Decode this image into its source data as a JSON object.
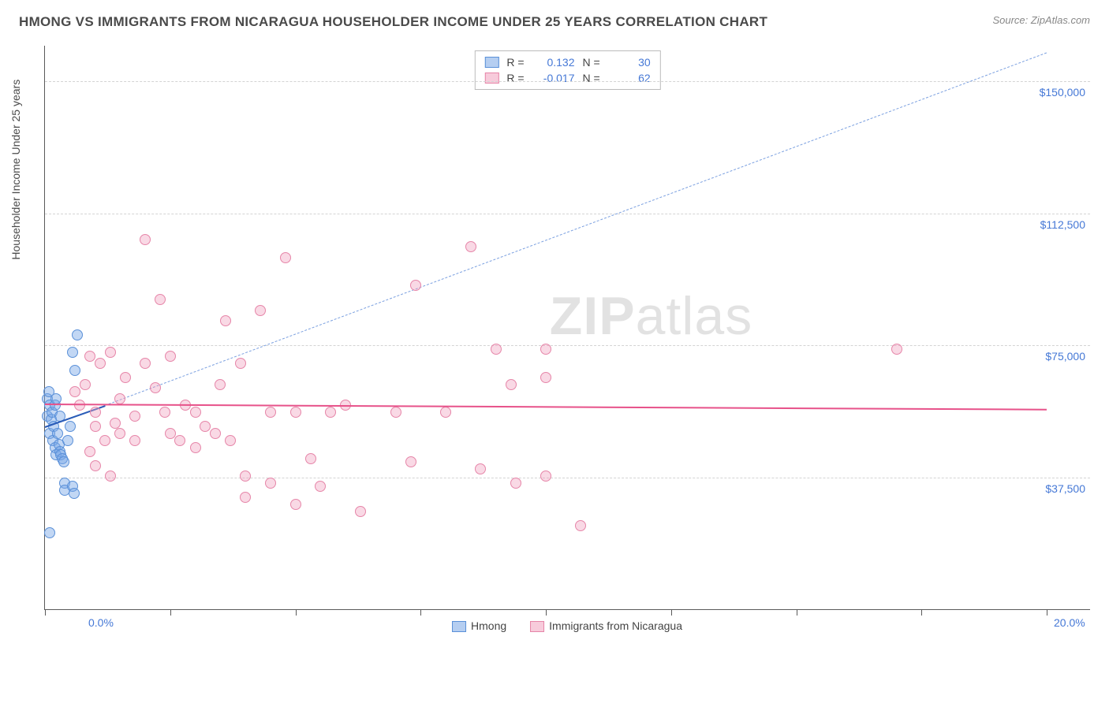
{
  "title": "HMONG VS IMMIGRANTS FROM NICARAGUA HOUSEHOLDER INCOME UNDER 25 YEARS CORRELATION CHART",
  "source": "Source: ZipAtlas.com",
  "watermark_a": "ZIP",
  "watermark_b": "atlas",
  "chart": {
    "type": "scatter",
    "y_axis_title": "Householder Income Under 25 years",
    "xlim": [
      0,
      20
    ],
    "ylim": [
      0,
      160000
    ],
    "x_ticks": [
      0,
      2.5,
      5.0,
      7.5,
      10.0,
      12.5,
      15.0,
      17.5,
      20.0
    ],
    "x_tick_labels": {
      "0": "0.0%",
      "20": "20.0%"
    },
    "y_gridlines": [
      37500,
      75000,
      112500,
      150000
    ],
    "y_tick_labels": {
      "37500": "$37,500",
      "75000": "$75,000",
      "112500": "$112,500",
      "150000": "$150,000"
    },
    "background_color": "#ffffff",
    "grid_color": "#d4d4d4",
    "series": [
      {
        "name": "Hmong",
        "color_fill": "rgba(120,166,230,0.45)",
        "color_stroke": "#5a90d8",
        "legend_r_label": "R =",
        "r": "0.132",
        "legend_n_label": "N =",
        "n": "30",
        "trend": {
          "x1": 0,
          "y1": 52000,
          "x2": 1.2,
          "y2": 58000,
          "dash_to_x": 20,
          "dash_to_y": 158000
        },
        "points": [
          [
            0.05,
            55000
          ],
          [
            0.05,
            60000
          ],
          [
            0.08,
            62000
          ],
          [
            0.1,
            50000
          ],
          [
            0.1,
            58000
          ],
          [
            0.12,
            54000
          ],
          [
            0.14,
            56000
          ],
          [
            0.15,
            48000
          ],
          [
            0.18,
            52000
          ],
          [
            0.2,
            46000
          ],
          [
            0.2,
            58000
          ],
          [
            0.22,
            44000
          ],
          [
            0.22,
            60000
          ],
          [
            0.25,
            50000
          ],
          [
            0.28,
            47000
          ],
          [
            0.3,
            55000
          ],
          [
            0.3,
            45000
          ],
          [
            0.32,
            44000
          ],
          [
            0.35,
            43000
          ],
          [
            0.38,
            42000
          ],
          [
            0.4,
            36000
          ],
          [
            0.4,
            34000
          ],
          [
            0.45,
            48000
          ],
          [
            0.5,
            52000
          ],
          [
            0.55,
            73000
          ],
          [
            0.6,
            68000
          ],
          [
            0.65,
            78000
          ],
          [
            0.1,
            22000
          ],
          [
            0.55,
            35000
          ],
          [
            0.58,
            33000
          ]
        ]
      },
      {
        "name": "Immigrants from Nicaragua",
        "color_fill": "rgba(240,160,190,0.40)",
        "color_stroke": "#e685a8",
        "legend_r_label": "R =",
        "r": "-0.017",
        "legend_n_label": "N =",
        "n": "62",
        "trend": {
          "x1": 0,
          "y1": 58500,
          "x2": 20,
          "y2": 57000
        },
        "points": [
          [
            0.6,
            62000
          ],
          [
            0.7,
            58000
          ],
          [
            0.8,
            64000
          ],
          [
            0.9,
            72000
          ],
          [
            1.0,
            56000
          ],
          [
            1.0,
            52000
          ],
          [
            1.1,
            70000
          ],
          [
            1.2,
            48000
          ],
          [
            1.3,
            73000
          ],
          [
            1.4,
            53000
          ],
          [
            1.5,
            60000
          ],
          [
            1.5,
            50000
          ],
          [
            1.6,
            66000
          ],
          [
            1.8,
            55000
          ],
          [
            1.8,
            48000
          ],
          [
            2.0,
            105000
          ],
          [
            2.0,
            70000
          ],
          [
            2.2,
            63000
          ],
          [
            2.4,
            56000
          ],
          [
            2.5,
            50000
          ],
          [
            2.5,
            72000
          ],
          [
            2.7,
            48000
          ],
          [
            2.8,
            58000
          ],
          [
            3.0,
            56000
          ],
          [
            3.0,
            46000
          ],
          [
            3.2,
            52000
          ],
          [
            3.4,
            50000
          ],
          [
            3.5,
            64000
          ],
          [
            3.6,
            82000
          ],
          [
            3.7,
            48000
          ],
          [
            3.9,
            70000
          ],
          [
            4.0,
            38000
          ],
          [
            4.0,
            32000
          ],
          [
            4.3,
            85000
          ],
          [
            4.5,
            56000
          ],
          [
            4.5,
            36000
          ],
          [
            4.8,
            100000
          ],
          [
            5.0,
            56000
          ],
          [
            5.0,
            30000
          ],
          [
            5.3,
            43000
          ],
          [
            5.5,
            35000
          ],
          [
            5.7,
            56000
          ],
          [
            6.0,
            58000
          ],
          [
            6.3,
            28000
          ],
          [
            7.0,
            56000
          ],
          [
            7.3,
            42000
          ],
          [
            7.4,
            92000
          ],
          [
            8.0,
            56000
          ],
          [
            8.5,
            103000
          ],
          [
            8.7,
            40000
          ],
          [
            9.0,
            74000
          ],
          [
            9.3,
            64000
          ],
          [
            9.4,
            36000
          ],
          [
            10.0,
            74000
          ],
          [
            10.0,
            66000
          ],
          [
            10.0,
            38000
          ],
          [
            10.7,
            24000
          ],
          [
            2.3,
            88000
          ],
          [
            17.0,
            74000
          ],
          [
            1.0,
            41000
          ],
          [
            1.3,
            38000
          ],
          [
            0.9,
            45000
          ]
        ]
      }
    ],
    "legend_bottom": [
      {
        "swatch": "blue",
        "label": "Hmong"
      },
      {
        "swatch": "pink",
        "label": "Immigrants from Nicaragua"
      }
    ]
  }
}
